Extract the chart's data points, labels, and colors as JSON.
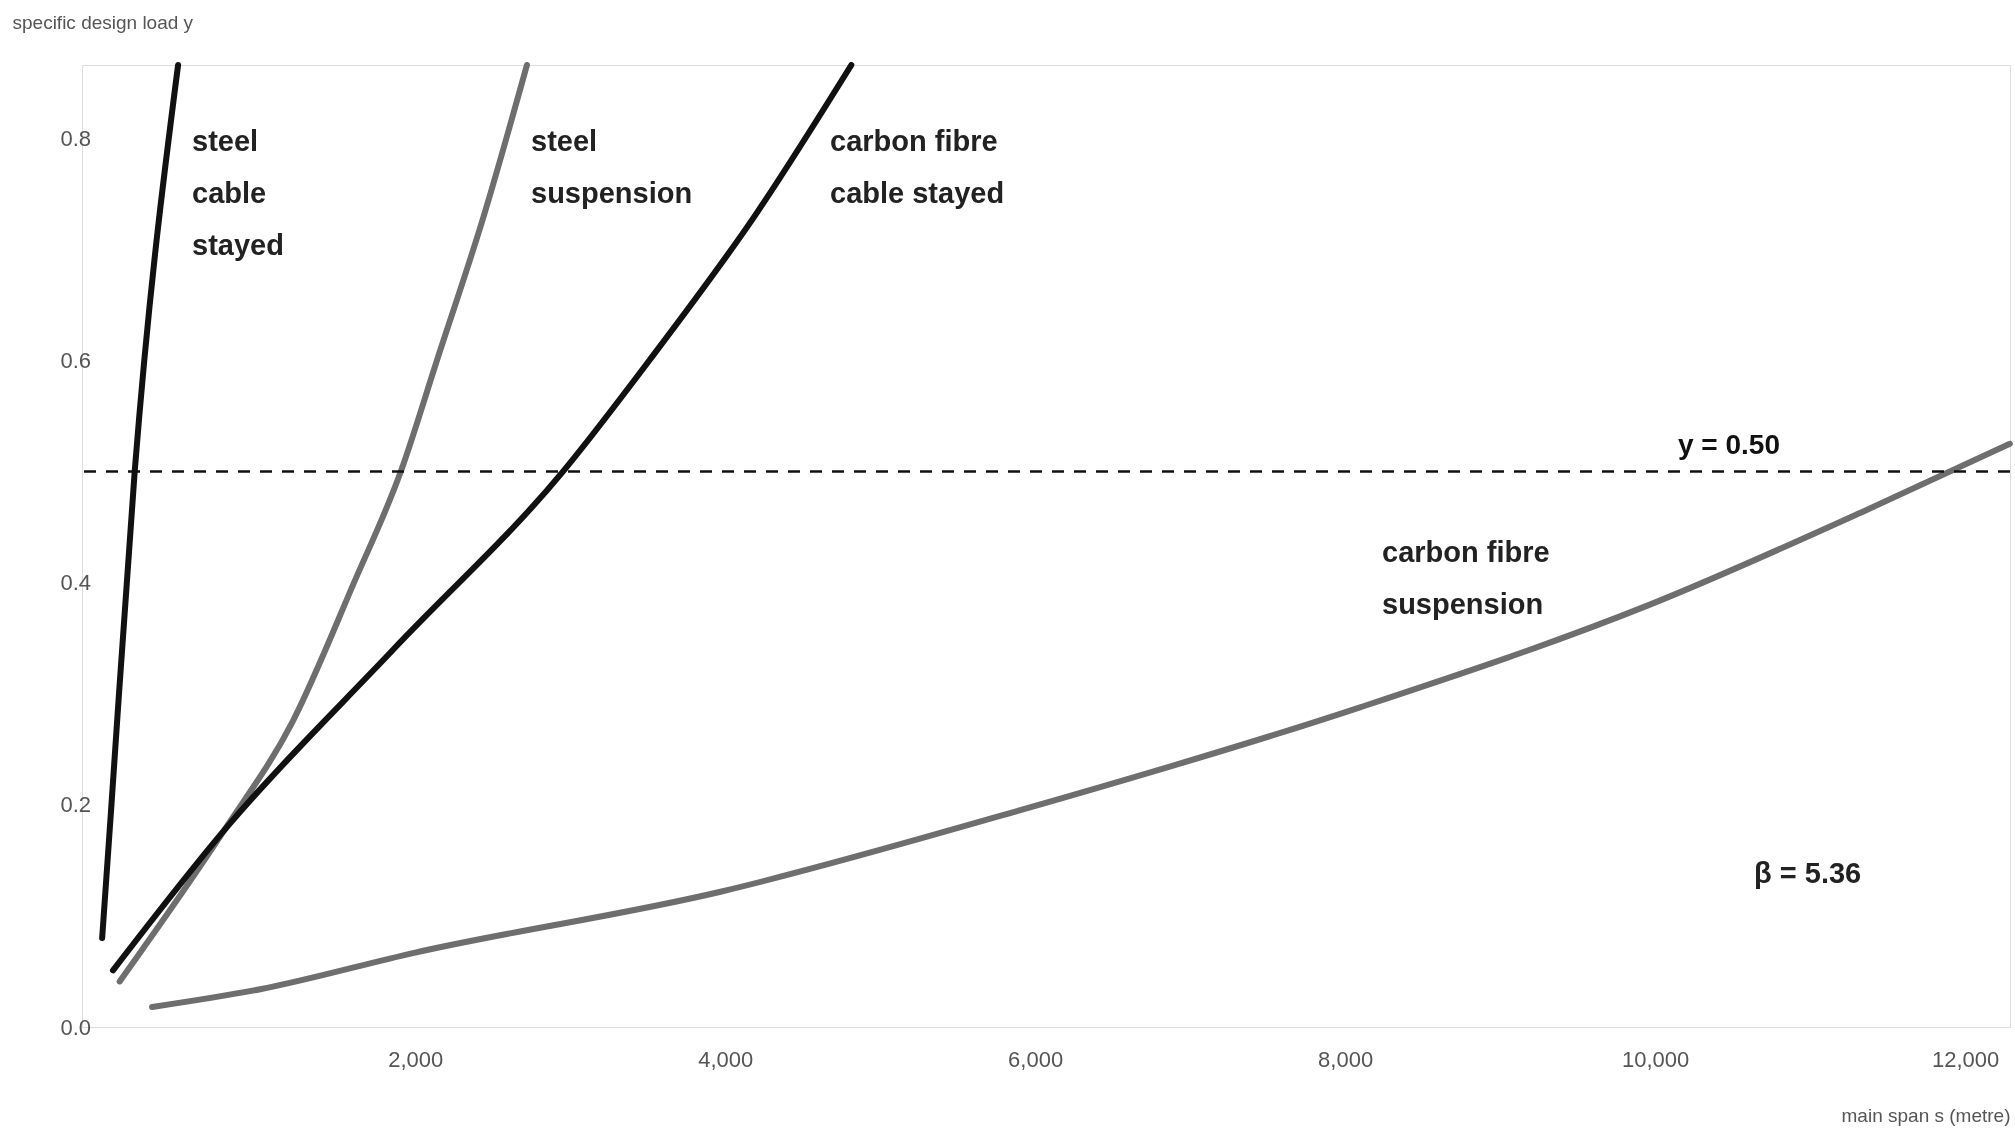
{
  "chart_data": {
    "type": "line",
    "xlabel": "main span s (metre)",
    "ylabel": "specific design load y",
    "xlim": [
      -150,
      12290
    ],
    "ylim": [
      0,
      0.866
    ],
    "xticks": [
      {
        "value": 2000,
        "label": "2,000"
      },
      {
        "value": 4000,
        "label": "4,000"
      },
      {
        "value": 6000,
        "label": "6,000"
      },
      {
        "value": 8000,
        "label": "8,000"
      },
      {
        "value": 10000,
        "label": "10,000"
      },
      {
        "value": 12000,
        "label": "12,000"
      }
    ],
    "yticks": [
      {
        "value": 0,
        "label": "0.0"
      },
      {
        "value": 0.2,
        "label": "0.2"
      },
      {
        "value": 0.4,
        "label": "0.4"
      },
      {
        "value": 0.6,
        "label": "0.6"
      },
      {
        "value": 0.8,
        "label": "0.8"
      }
    ],
    "grid": false,
    "marker": "none",
    "line_style": "solid",
    "series": [
      {
        "name": "steel cable stayed",
        "color": "#111111",
        "x": [
          -20,
          40,
          190,
          470
        ],
        "values": [
          0.08,
          0.2,
          0.5,
          0.866
        ]
      },
      {
        "name": "steel suspension",
        "color": "#6e6e6e",
        "x": [
          93,
          767,
          1209,
          1605,
          1907,
          2140,
          2442,
          2721
        ],
        "values": [
          0.041,
          0.177,
          0.275,
          0.4,
          0.5,
          0.6,
          0.73,
          0.866
        ]
      },
      {
        "name": "carbon fibre cable stayed",
        "color": "#111111",
        "x": [
          50,
          767,
          1860,
          2953,
          3510,
          4190,
          4814
        ],
        "values": [
          0.051,
          0.177,
          0.34,
          0.5,
          0.6,
          0.73,
          0.866
        ]
      },
      {
        "name": "carbon fibre suspension",
        "color": "#6e6e6e",
        "x": [
          302,
          1000,
          2000,
          3977,
          5774,
          8101,
          9962,
          11358,
          12289
        ],
        "values": [
          0.018,
          0.034,
          0.067,
          0.122,
          0.19,
          0.288,
          0.38,
          0.465,
          0.525
        ]
      }
    ],
    "ref_lines": [
      {
        "axis": "y",
        "value": 0.5,
        "label": "y = 0.50",
        "line_style": "dashed",
        "color": "#111111"
      }
    ],
    "annotations": [
      "β = 5.36"
    ]
  }
}
